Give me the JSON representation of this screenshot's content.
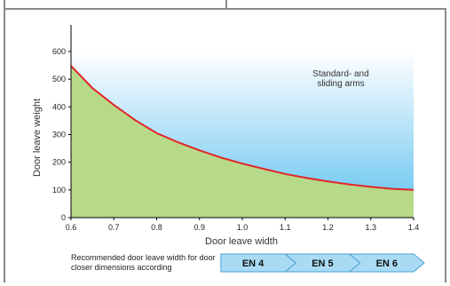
{
  "chart_data": {
    "type": "area",
    "xlabel": "Door leave width",
    "ylabel": "Door leave weight",
    "xlim": [
      0.6,
      1.4
    ],
    "ylim": [
      0,
      600
    ],
    "x_ticks": [
      "0.6",
      "0.7",
      "0.8",
      "0.9",
      "1.0",
      "1.1",
      "1.2",
      "1.3",
      "1.4"
    ],
    "y_ticks": [
      "0",
      "100",
      "200",
      "300",
      "400",
      "500",
      "600"
    ],
    "grid": false,
    "curve": {
      "x": [
        0.6,
        0.65,
        0.7,
        0.75,
        0.8,
        0.85,
        0.9,
        0.95,
        1.0,
        1.05,
        1.1,
        1.15,
        1.2,
        1.25,
        1.3,
        1.35,
        1.4
      ],
      "y": [
        548,
        468,
        407,
        352,
        305,
        272,
        243,
        217,
        195,
        176,
        158,
        143,
        131,
        120,
        111,
        104,
        100
      ],
      "color": "#e32528"
    },
    "region_label_line1": "Standard- and",
    "region_label_line2": "sliding arms",
    "fill_below_color": "#b7d98a",
    "gradient_top_color": "#ffffff",
    "gradient_bottom_color": "#5fc2ef"
  },
  "footer": {
    "note_line1": "Recommended door leave width for door",
    "note_line2": "closer dimensions according",
    "en_ranges": [
      {
        "label": "EN 4",
        "from": 0.95,
        "to": 1.1
      },
      {
        "label": "EN 5",
        "from": 1.1,
        "to": 1.25
      },
      {
        "label": "EN 6",
        "from": 1.25,
        "to": 1.4
      }
    ]
  },
  "colors": {
    "frame": "#8a8a8a",
    "arrow_fill": "#a9dcf4",
    "arrow_stroke": "#4a9fcf"
  }
}
